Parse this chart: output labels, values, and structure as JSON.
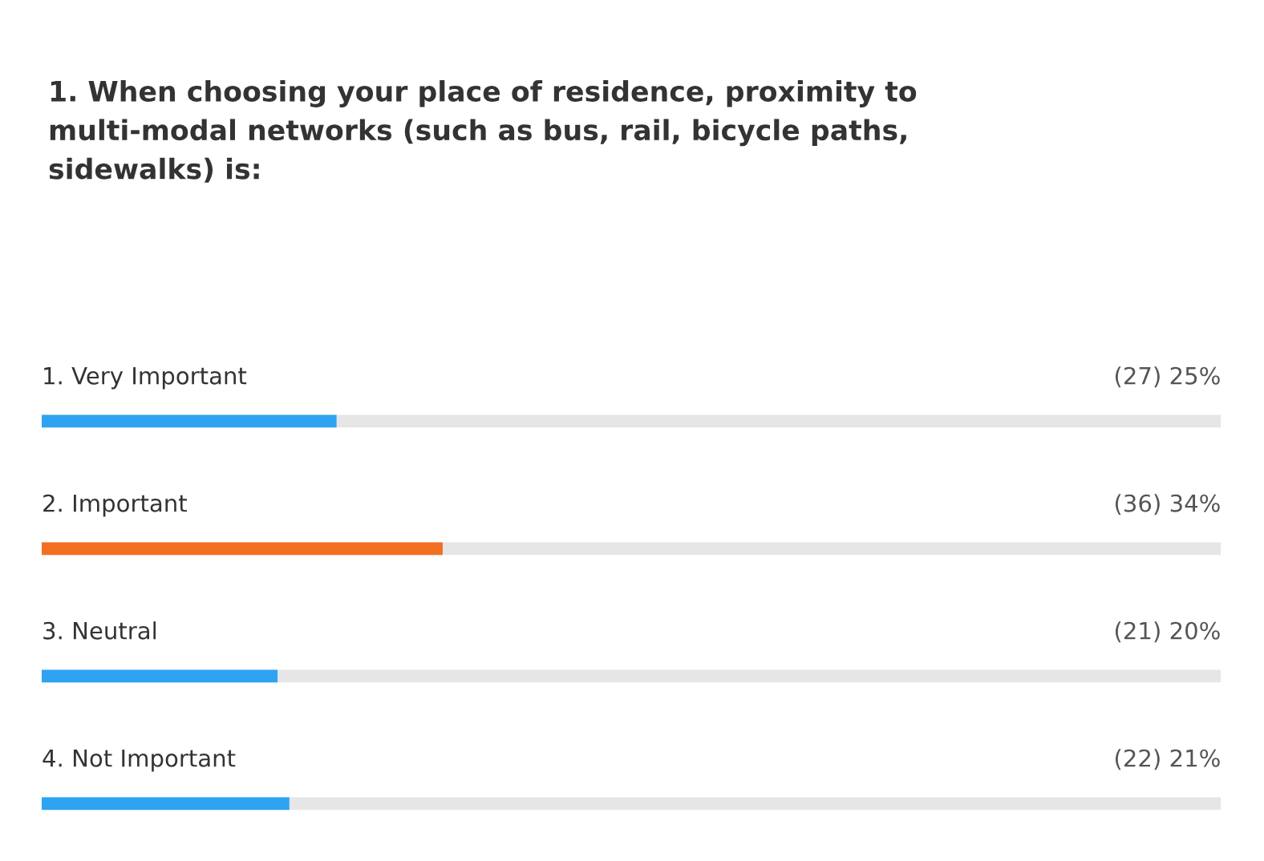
{
  "chart_data": {
    "type": "bar",
    "orientation": "horizontal",
    "title": "1. When choosing your place of residence, proximity to\nmulti-modal networks (such as bus, rail, bicycle paths,\nsidewalks) is:",
    "categories": [
      "1. Very Important",
      "2. Important",
      "3. Neutral",
      "4. Not Important"
    ],
    "values": [
      25,
      34,
      20,
      21
    ],
    "colors": [
      "#2ea3f2",
      "#f26f21",
      "#2ea3f2",
      "#2ea3f2"
    ],
    "value_labels": [
      "(27) 25%",
      "(36) 34%",
      "(21) 20%",
      "(22) 21%"
    ],
    "xlim": [
      0,
      100
    ]
  }
}
